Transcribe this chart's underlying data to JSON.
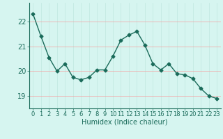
{
  "x": [
    0,
    1,
    2,
    3,
    4,
    5,
    6,
    7,
    8,
    9,
    10,
    11,
    12,
    13,
    14,
    15,
    16,
    17,
    18,
    19,
    20,
    21,
    22,
    23
  ],
  "y": [
    22.3,
    21.4,
    20.55,
    20.0,
    20.3,
    19.75,
    19.65,
    19.75,
    20.05,
    20.05,
    20.6,
    21.25,
    21.45,
    21.6,
    21.05,
    20.3,
    20.05,
    20.3,
    19.9,
    19.85,
    19.7,
    19.3,
    19.0,
    18.9
  ],
  "xlabel": "Humidex (Indice chaleur)",
  "ylim": [
    18.5,
    22.75
  ],
  "xlim": [
    -0.5,
    23.5
  ],
  "yticks": [
    19,
    20,
    21,
    22
  ],
  "xticks": [
    0,
    1,
    2,
    3,
    4,
    5,
    6,
    7,
    8,
    9,
    10,
    11,
    12,
    13,
    14,
    15,
    16,
    17,
    18,
    19,
    20,
    21,
    22,
    23
  ],
  "line_color": "#1a6b5a",
  "marker": "D",
  "marker_size": 2.5,
  "bg_color": "#d6f5f0",
  "grid_color_v": "#c0e8e0",
  "grid_color_h": "#f5a0a0",
  "tick_color": "#1a6b5a",
  "label_color": "#1a6b5a",
  "font_size": 7,
  "line_width": 1.0
}
